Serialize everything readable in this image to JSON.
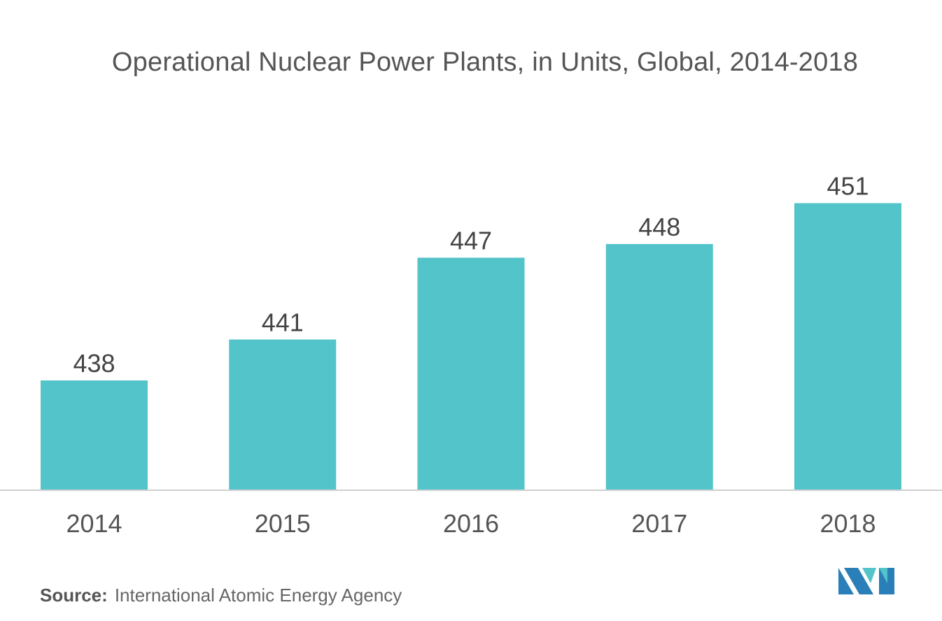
{
  "chart_data": {
    "type": "bar",
    "title": "Operational Nuclear Power Plants, in Units, Global, 2014-2018",
    "categories": [
      "2014",
      "2015",
      "2016",
      "2017",
      "2018"
    ],
    "values": [
      438,
      441,
      447,
      448,
      451
    ],
    "value_labels": [
      "438",
      "441",
      "447",
      "448",
      "451"
    ],
    "xlabel": "",
    "ylabel": "",
    "ylim": [
      430,
      452
    ],
    "grid": false,
    "legend": "none",
    "bar_color": "#52c4ca"
  },
  "footer": {
    "source_label": "Source:",
    "source_text": "International Atomic Energy Agency"
  },
  "logo": {
    "name": "publisher-logo",
    "colors": [
      "#2a7fb8",
      "#52c4ca"
    ]
  }
}
